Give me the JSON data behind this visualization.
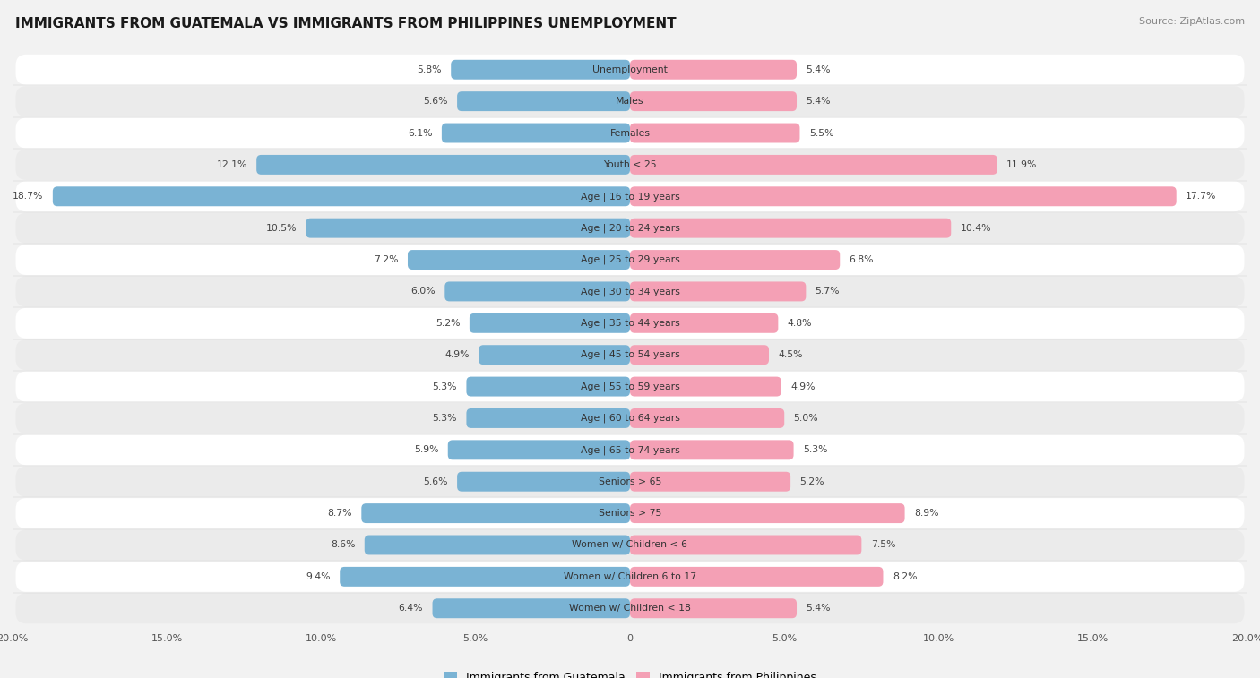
{
  "title": "IMMIGRANTS FROM GUATEMALA VS IMMIGRANTS FROM PHILIPPINES UNEMPLOYMENT",
  "source": "Source: ZipAtlas.com",
  "categories": [
    "Unemployment",
    "Males",
    "Females",
    "Youth < 25",
    "Age | 16 to 19 years",
    "Age | 20 to 24 years",
    "Age | 25 to 29 years",
    "Age | 30 to 34 years",
    "Age | 35 to 44 years",
    "Age | 45 to 54 years",
    "Age | 55 to 59 years",
    "Age | 60 to 64 years",
    "Age | 65 to 74 years",
    "Seniors > 65",
    "Seniors > 75",
    "Women w/ Children < 6",
    "Women w/ Children 6 to 17",
    "Women w/ Children < 18"
  ],
  "guatemala_values": [
    5.8,
    5.6,
    6.1,
    12.1,
    18.7,
    10.5,
    7.2,
    6.0,
    5.2,
    4.9,
    5.3,
    5.3,
    5.9,
    5.6,
    8.7,
    8.6,
    9.4,
    6.4
  ],
  "philippines_values": [
    5.4,
    5.4,
    5.5,
    11.9,
    17.7,
    10.4,
    6.8,
    5.7,
    4.8,
    4.5,
    4.9,
    5.0,
    5.3,
    5.2,
    8.9,
    7.5,
    8.2,
    5.4
  ],
  "guatemala_color": "#7ab3d4",
  "philippines_color": "#f4a0b5",
  "bg_color": "#f2f2f2",
  "row_colors": [
    "#ffffff",
    "#ebebeb"
  ],
  "xlim": 20.0,
  "legend_guatemala": "Immigrants from Guatemala",
  "legend_philippines": "Immigrants from Philippines",
  "title_fontsize": 11,
  "source_fontsize": 8,
  "label_fontsize": 7.8,
  "value_fontsize": 7.8,
  "tick_fontsize": 8
}
